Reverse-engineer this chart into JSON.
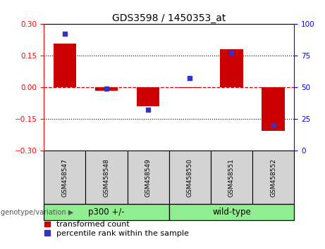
{
  "title": "GDS3598 / 1450353_at",
  "samples": [
    "GSM458547",
    "GSM458548",
    "GSM458549",
    "GSM458550",
    "GSM458551",
    "GSM458552"
  ],
  "bar_values": [
    0.205,
    -0.018,
    -0.09,
    -0.005,
    0.18,
    -0.205
  ],
  "dot_values_pct": [
    92,
    49,
    32,
    57,
    77,
    20
  ],
  "ylim_left": [
    -0.3,
    0.3
  ],
  "ylim_right": [
    0,
    100
  ],
  "left_yticks": [
    -0.3,
    -0.15,
    0,
    0.15,
    0.3
  ],
  "right_yticks": [
    0,
    25,
    50,
    75,
    100
  ],
  "bar_color": "#CC0000",
  "dot_color": "#3333CC",
  "hline_color": "#CC0000",
  "grid_color": "#000000",
  "legend_bar_label": "transformed count",
  "legend_dot_label": "percentile rank within the sample",
  "genotype_label": "genotype/variation",
  "header_bg": "#D3D3D3",
  "group_bg": "#90EE90",
  "title_fontsize": 10,
  "tick_fontsize": 7.5,
  "legend_fontsize": 8,
  "bar_width": 0.55,
  "group1_label": "p300 +/-",
  "group2_label": "wild-type"
}
